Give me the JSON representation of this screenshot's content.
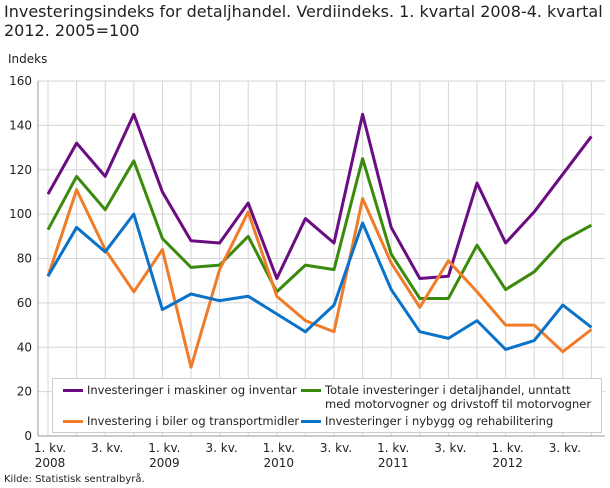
{
  "title": "Investeringsindeks for detaljhandel. Verdiindeks. 1. kvartal 2008-4. kvartal 2012. 2005=100",
  "source": "Kilde: Statistisk sentralbyrå.",
  "chart_data": {
    "type": "line",
    "title": "Investeringsindeks for detaljhandel. Verdiindeks. 1. kvartal 2008-4. kvartal 2012. 2005=100",
    "ylabel": "Indeks",
    "ylim": [
      0,
      160
    ],
    "yticks": [
      0,
      20,
      40,
      60,
      80,
      100,
      120,
      140,
      160
    ],
    "grid": true,
    "legend_placement": "bottom",
    "x": [
      "2008K1",
      "2008K2",
      "2008K3",
      "2008K4",
      "2009K1",
      "2009K2",
      "2009K3",
      "2009K4",
      "2010K1",
      "2010K2",
      "2010K3",
      "2010K4",
      "2011K1",
      "2011K2",
      "2011K3",
      "2011K4",
      "2012K1",
      "2012K2",
      "2012K3",
      "2012K4"
    ],
    "xtick_labels": [
      {
        "q": "1. kv.",
        "year": "2008"
      },
      {
        "q": "3. kv.",
        "year": ""
      },
      {
        "q": "1. kv.",
        "year": "2009"
      },
      {
        "q": "3. kv.",
        "year": ""
      },
      {
        "q": "1. kv.",
        "year": "2010"
      },
      {
        "q": "3. kv.",
        "year": ""
      },
      {
        "q": "1. kv.",
        "year": "2011"
      },
      {
        "q": "3. kv.",
        "year": ""
      },
      {
        "q": "1. kv.",
        "year": "2012"
      },
      {
        "q": "3. kv.",
        "year": ""
      }
    ],
    "series": [
      {
        "name": "Investeringer i maskiner og inventar",
        "color": "#6a0d83",
        "values": [
          109,
          132,
          117,
          145,
          110,
          88,
          87,
          105,
          71,
          98,
          87,
          145,
          94,
          71,
          72,
          114,
          87,
          101,
          118,
          135
        ]
      },
      {
        "name": "Totale investeringer i detaljhandel, unntatt med motorvogner og drivstoff til motorvogner",
        "color": "#3a8a0c",
        "values": [
          93,
          117,
          102,
          124,
          89,
          76,
          77,
          90,
          65,
          77,
          75,
          125,
          82,
          62,
          62,
          86,
          66,
          74,
          88,
          95
        ]
      },
      {
        "name": "Investering i biler og transportmidler",
        "color": "#f07c2a",
        "values": [
          72,
          111,
          84,
          65,
          84,
          31,
          75,
          101,
          63,
          52,
          47,
          107,
          78,
          58,
          79,
          65,
          50,
          50,
          38,
          48
        ]
      },
      {
        "name": "Investeringer  i nybygg og rehabilitering",
        "color": "#0a72c9",
        "values": [
          72,
          94,
          83,
          100,
          57,
          64,
          61,
          63,
          55,
          47,
          59,
          96,
          66,
          47,
          44,
          52,
          39,
          43,
          59,
          49
        ]
      }
    ]
  }
}
